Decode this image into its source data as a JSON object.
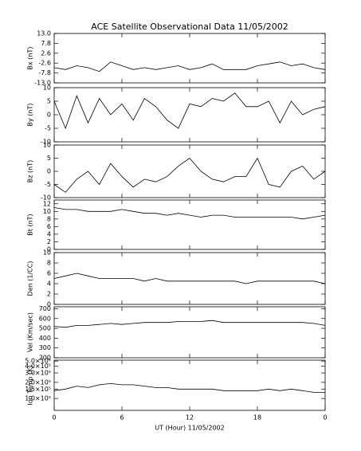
{
  "title": "ACE Satellite Observational Data   11/05/2002",
  "x_axis": {
    "xlim": [
      0,
      24
    ],
    "xticks": [
      0,
      6,
      12,
      18,
      {
        "value": 24,
        "label": "0"
      }
    ],
    "xlabel": "UT (Hour)   11/05/2002"
  },
  "chart_data": [
    {
      "type": "line",
      "ylabel": "Bx (nT)",
      "ylim": [
        -13,
        13
      ],
      "yticks": [
        {
          "value": 13,
          "label": "13.0"
        },
        7.8,
        2.6,
        -2.6,
        -7.8,
        {
          "value": -13,
          "label": "-13.0"
        }
      ],
      "x": [
        0,
        1,
        2,
        3,
        4,
        5,
        6,
        7,
        8,
        9,
        10,
        11,
        12,
        13,
        14,
        15,
        16,
        17,
        18,
        19,
        20,
        21,
        22,
        23,
        24
      ],
      "values": [
        -5,
        -6,
        -4,
        -5,
        -7,
        -2,
        -4,
        -6,
        -5,
        -6,
        -5,
        -4,
        -6,
        -5,
        -3,
        -6,
        -6,
        -6,
        -4,
        -3,
        -2,
        -4,
        -3,
        -5,
        -6
      ]
    },
    {
      "type": "line",
      "ylabel": "By (nT)",
      "ylim": [
        -10,
        10
      ],
      "yticks": [
        10,
        5,
        0,
        -5,
        -10
      ],
      "x": [
        0,
        1,
        2,
        3,
        4,
        5,
        6,
        7,
        8,
        9,
        10,
        11,
        12,
        13,
        14,
        15,
        16,
        17,
        18,
        19,
        20,
        21,
        22,
        23,
        24
      ],
      "values": [
        5,
        -5,
        7,
        -3,
        6,
        0,
        4,
        -2,
        6,
        3,
        -2,
        -5,
        4,
        3,
        6,
        5,
        8,
        3,
        3,
        5,
        -3,
        5,
        0,
        2,
        3
      ]
    },
    {
      "type": "line",
      "ylabel": "Bz (nT)",
      "ylim": [
        -10,
        10
      ],
      "yticks": [
        10,
        5,
        0,
        -5,
        -10
      ],
      "x": [
        0,
        1,
        2,
        3,
        4,
        5,
        6,
        7,
        8,
        9,
        10,
        11,
        12,
        13,
        14,
        15,
        16,
        17,
        18,
        19,
        20,
        21,
        22,
        23,
        24
      ],
      "values": [
        -5,
        -8,
        -3,
        0,
        -5,
        3,
        -2,
        -6,
        -3,
        -4,
        -2,
        2,
        5,
        0,
        -3,
        -4,
        -2,
        -2,
        5,
        -5,
        -6,
        0,
        2,
        -3,
        0
      ]
    },
    {
      "type": "line",
      "ylabel": "Bt (nT)",
      "ylim": [
        0,
        13
      ],
      "yticks": [
        12,
        10,
        8,
        6,
        4,
        2,
        0
      ],
      "x": [
        0,
        1,
        2,
        3,
        4,
        5,
        6,
        7,
        8,
        9,
        10,
        11,
        12,
        13,
        14,
        15,
        16,
        17,
        18,
        19,
        20,
        21,
        22,
        23,
        24
      ],
      "values": [
        11,
        10.5,
        10.5,
        10,
        10,
        10,
        10.5,
        10,
        9.5,
        9.5,
        9,
        9.5,
        9,
        8.5,
        9,
        9,
        8.5,
        8.5,
        8.5,
        8.5,
        8.5,
        8.5,
        8,
        8.5,
        9
      ]
    },
    {
      "type": "line",
      "ylabel": "Den (1/CC)",
      "ylim": [
        0,
        10
      ],
      "yticks": [
        10,
        8,
        6,
        4,
        2,
        0
      ],
      "x": [
        0,
        1,
        2,
        3,
        4,
        5,
        6,
        7,
        8,
        9,
        10,
        11,
        12,
        13,
        14,
        15,
        16,
        17,
        18,
        19,
        20,
        21,
        22,
        23,
        24
      ],
      "values": [
        5,
        5.5,
        6,
        5.5,
        5,
        5,
        5,
        5,
        4.5,
        5,
        4.5,
        4.5,
        4.5,
        4.5,
        4.5,
        4.5,
        4.5,
        4,
        4.5,
        4.5,
        4.5,
        4.5,
        4.5,
        4.5,
        4
      ]
    },
    {
      "type": "line",
      "ylabel": "Vel (Km/sec)",
      "ylim": [
        200,
        720
      ],
      "yticks": [
        700,
        600,
        500,
        400,
        300,
        200
      ],
      "x": [
        0,
        1,
        2,
        3,
        4,
        5,
        6,
        7,
        8,
        9,
        10,
        11,
        12,
        13,
        14,
        15,
        16,
        17,
        18,
        19,
        20,
        21,
        22,
        23,
        24
      ],
      "values": [
        520,
        510,
        530,
        530,
        540,
        550,
        540,
        550,
        560,
        560,
        560,
        570,
        570,
        570,
        580,
        560,
        560,
        560,
        560,
        560,
        560,
        560,
        560,
        550,
        530
      ]
    },
    {
      "type": "line",
      "ylabel": "Ion Temp (K)",
      "log_scale": true,
      "ylim": [
        60000,
        520000
      ],
      "yticks": [
        {
          "value": 500000,
          "label": "5.0×10⁵"
        },
        {
          "value": 400000,
          "label": "4.0×10⁵"
        },
        {
          "value": 300000,
          "label": "3.0×10⁵"
        },
        {
          "value": 200000,
          "label": "2.0×10⁵"
        },
        {
          "value": 150000,
          "label": "1.5×10⁵"
        },
        {
          "value": 100000,
          "label": "1.0×10⁵"
        }
      ],
      "x": [
        0,
        1,
        2,
        3,
        4,
        5,
        6,
        7,
        8,
        9,
        10,
        11,
        12,
        13,
        14,
        15,
        16,
        17,
        18,
        19,
        20,
        21,
        22,
        23,
        24
      ],
      "values": [
        140000,
        150000,
        170000,
        160000,
        180000,
        190000,
        180000,
        180000,
        170000,
        160000,
        160000,
        150000,
        150000,
        150000,
        150000,
        140000,
        140000,
        140000,
        140000,
        150000,
        140000,
        150000,
        140000,
        130000,
        130000
      ]
    }
  ]
}
